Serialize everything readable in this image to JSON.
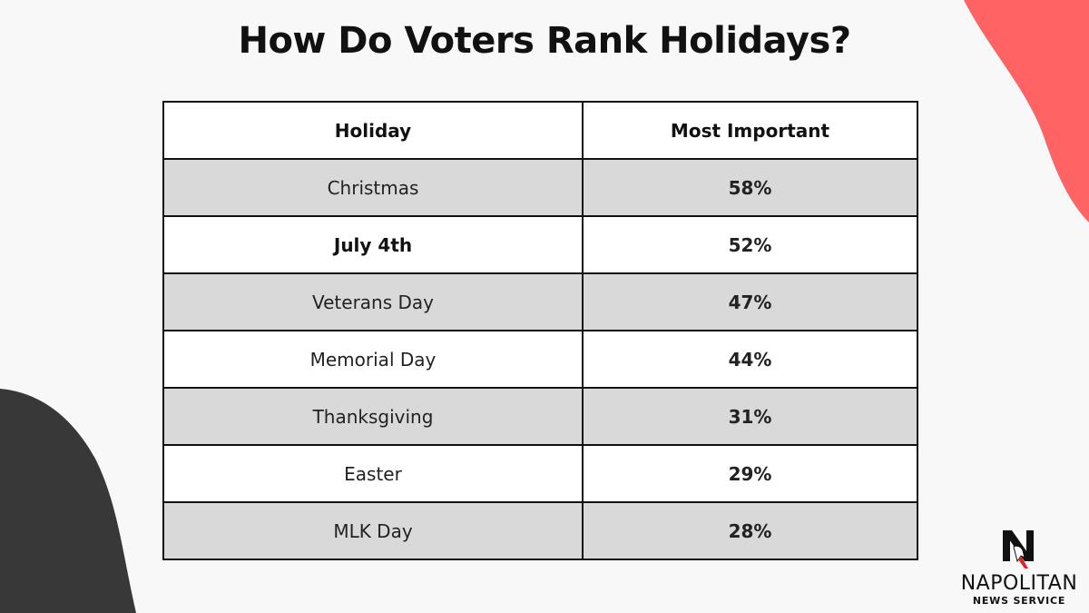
{
  "title": "How Do Voters Rank Holidays?",
  "table": {
    "headers": [
      "Holiday",
      "Most Important"
    ],
    "rows": [
      {
        "holiday": "Christmas",
        "value": "58%"
      },
      {
        "holiday": "July 4th",
        "value": "52%"
      },
      {
        "holiday": "Veterans Day",
        "value": "47%"
      },
      {
        "holiday": "Memorial Day",
        "value": "44%"
      },
      {
        "holiday": "Thanksgiving",
        "value": "31%"
      },
      {
        "holiday": "Easter",
        "value": "29%"
      },
      {
        "holiday": "MLK Day",
        "value": "28%"
      }
    ]
  },
  "chart_data": {
    "type": "table",
    "title": "How Do Voters Rank Holidays?",
    "columns": [
      "Holiday",
      "Most Important"
    ],
    "categories": [
      "Christmas",
      "July 4th",
      "Veterans Day",
      "Memorial Day",
      "Thanksgiving",
      "Easter",
      "MLK Day"
    ],
    "values": [
      58,
      52,
      47,
      44,
      31,
      29,
      28
    ],
    "unit": "%"
  },
  "logo": {
    "name": "NAPOLITAN",
    "subtitle": "NEWS SERVICE",
    "icon": "napolitan-n-eagle-icon"
  },
  "colors": {
    "background": "#f8f8f8",
    "accent_red": "#ff6363",
    "dark_shape": "#383838",
    "row_alt": "#d9d9d9",
    "row_plain": "#ffffff",
    "border": "#111111"
  }
}
